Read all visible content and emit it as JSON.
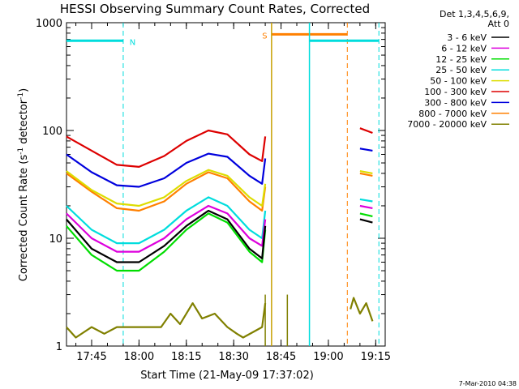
{
  "chart_data": {
    "type": "line",
    "title": "HESSI Observing Summary Count Rates, Corrected",
    "xlabel": "Start Time (21-May-09 17:37:02)",
    "ylabel": "Corrected Count Rate (s",
    "ylabel_sup1": "-1",
    "ylabel_mid": " detector",
    "ylabel_sup2": "-1",
    "ylabel_end": ")",
    "yscale": "log",
    "xlim": [
      "17:37:02",
      "19:18:00"
    ],
    "ylim": [
      1,
      1000
    ],
    "grid": false,
    "x_ticks": [
      "17:45",
      "18:00",
      "18:15",
      "18:30",
      "18:45",
      "19:00",
      "19:15"
    ],
    "y_ticks": [
      "1",
      "10",
      "100",
      "1000"
    ],
    "legend": {
      "placement": "right",
      "header": [
        "Det 1,3,4,5,6,9,",
        "Att 0"
      ],
      "entries": [
        {
          "label": "3 - 6 keV",
          "color": "#000000"
        },
        {
          "label": "6 - 12 keV",
          "color": "#dd00dd"
        },
        {
          "label": "12 - 25 keV",
          "color": "#00dd00"
        },
        {
          "label": "25 - 50 keV",
          "color": "#00dddd"
        },
        {
          "label": "50 - 100 keV",
          "color": "#dddd00"
        },
        {
          "label": "100 - 300 keV",
          "color": "#dd0000"
        },
        {
          "label": "300 - 800 keV",
          "color": "#0000dd"
        },
        {
          "label": "800 - 7000 keV",
          "color": "#ff8000"
        },
        {
          "label": "7000 - 20000 keV",
          "color": "#808000"
        }
      ]
    },
    "series": [
      {
        "color": "#dd0000",
        "segments": [
          [
            [
              "17:37",
              88
            ],
            [
              "17:45",
              65
            ],
            [
              "17:53",
              48
            ],
            [
              "18:00",
              46
            ],
            [
              "18:08",
              58
            ],
            [
              "18:15",
              80
            ],
            [
              "18:22",
              100
            ],
            [
              "18:28",
              92
            ],
            [
              "18:35",
              60
            ],
            [
              "18:39",
              52
            ],
            [
              "18:40",
              88
            ]
          ],
          [
            [
              "19:10",
              105
            ],
            [
              "19:14",
              95
            ]
          ]
        ]
      },
      {
        "color": "#0000dd",
        "segments": [
          [
            [
              "17:37",
              60
            ],
            [
              "17:45",
              41
            ],
            [
              "17:53",
              31
            ],
            [
              "18:00",
              30
            ],
            [
              "18:08",
              36
            ],
            [
              "18:15",
              50
            ],
            [
              "18:22",
              61
            ],
            [
              "18:28",
              57
            ],
            [
              "18:35",
              38
            ],
            [
              "18:39",
              32
            ],
            [
              "18:40",
              55
            ]
          ],
          [
            [
              "19:10",
              68
            ],
            [
              "19:14",
              65
            ]
          ]
        ]
      },
      {
        "color": "#ff8000",
        "segments": [
          [
            [
              "17:37",
              40
            ],
            [
              "17:45",
              27
            ],
            [
              "17:53",
              19
            ],
            [
              "18:00",
              18
            ],
            [
              "18:08",
              22
            ],
            [
              "18:15",
              32
            ],
            [
              "18:22",
              41
            ],
            [
              "18:28",
              36
            ],
            [
              "18:35",
              22
            ],
            [
              "18:39",
              18
            ],
            [
              "18:40",
              30
            ]
          ],
          [
            [
              "19:10",
              40
            ],
            [
              "19:14",
              38
            ]
          ]
        ]
      },
      {
        "color": "#dddd00",
        "segments": [
          [
            [
              "17:37",
              42
            ],
            [
              "17:45",
              28
            ],
            [
              "17:53",
              21
            ],
            [
              "18:00",
              20
            ],
            [
              "18:08",
              24
            ],
            [
              "18:15",
              34
            ],
            [
              "18:22",
              43
            ],
            [
              "18:28",
              38
            ],
            [
              "18:35",
              24
            ],
            [
              "18:39",
              20
            ],
            [
              "18:40",
              32
            ]
          ],
          [
            [
              "19:10",
              42
            ],
            [
              "19:14",
              40
            ]
          ]
        ]
      },
      {
        "color": "#00dddd",
        "segments": [
          [
            [
              "17:37",
              20
            ],
            [
              "17:45",
              12
            ],
            [
              "17:53",
              9
            ],
            [
              "18:00",
              9
            ],
            [
              "18:08",
              12
            ],
            [
              "18:15",
              18
            ],
            [
              "18:22",
              24
            ],
            [
              "18:28",
              20
            ],
            [
              "18:35",
              12
            ],
            [
              "18:39",
              10
            ],
            [
              "18:40",
              18
            ]
          ],
          [
            [
              "19:10",
              23
            ],
            [
              "19:14",
              22
            ]
          ]
        ]
      },
      {
        "color": "#dd00dd",
        "segments": [
          [
            [
              "17:37",
              17
            ],
            [
              "17:45",
              10
            ],
            [
              "17:53",
              7.5
            ],
            [
              "18:00",
              7.5
            ],
            [
              "18:08",
              10
            ],
            [
              "18:15",
              15
            ],
            [
              "18:22",
              20
            ],
            [
              "18:28",
              17
            ],
            [
              "18:35",
              10
            ],
            [
              "18:39",
              8.5
            ],
            [
              "18:40",
              15
            ]
          ],
          [
            [
              "19:10",
              20
            ],
            [
              "19:14",
              19
            ]
          ]
        ]
      },
      {
        "color": "#00dd00",
        "segments": [
          [
            [
              "17:37",
              13
            ],
            [
              "17:45",
              7
            ],
            [
              "17:53",
              5
            ],
            [
              "18:00",
              5
            ],
            [
              "18:08",
              7.5
            ],
            [
              "18:15",
              12
            ],
            [
              "18:22",
              17
            ],
            [
              "18:28",
              14
            ],
            [
              "18:35",
              7.5
            ],
            [
              "18:39",
              6
            ],
            [
              "18:40",
              12
            ]
          ],
          [
            [
              "19:10",
              17
            ],
            [
              "19:14",
              16
            ]
          ]
        ]
      },
      {
        "color": "#000000",
        "segments": [
          [
            [
              "17:37",
              15
            ],
            [
              "17:45",
              8
            ],
            [
              "17:53",
              6
            ],
            [
              "18:00",
              6
            ],
            [
              "18:08",
              8.5
            ],
            [
              "18:15",
              13
            ],
            [
              "18:22",
              18
            ],
            [
              "18:28",
              15
            ],
            [
              "18:35",
              8
            ],
            [
              "18:39",
              6.5
            ],
            [
              "18:40",
              13
            ]
          ],
          [
            [
              "19:10",
              15
            ],
            [
              "19:14",
              14
            ]
          ]
        ]
      },
      {
        "color": "#808000",
        "segments": [
          [
            [
              "17:37",
              1.5
            ],
            [
              "17:40",
              1.2
            ],
            [
              "17:45",
              1.5
            ],
            [
              "17:49",
              1.3
            ],
            [
              "17:53",
              1.5
            ],
            [
              "18:07",
              1.5
            ],
            [
              "18:10",
              2
            ],
            [
              "18:13",
              1.6
            ],
            [
              "18:17",
              2.5
            ],
            [
              "18:20",
              1.8
            ],
            [
              "18:24",
              2
            ],
            [
              "18:28",
              1.5
            ],
            [
              "18:31",
              1.3
            ],
            [
              "18:33",
              1.2
            ],
            [
              "18:39",
              1.5
            ],
            [
              "18:40",
              2.5
            ]
          ],
          [
            [
              "19:07",
              2.2
            ],
            [
              "19:08",
              2.8
            ],
            [
              "19:10",
              2.0
            ],
            [
              "19:12",
              2.5
            ],
            [
              "19:14",
              1.7
            ]
          ]
        ]
      }
    ],
    "spikes": [
      {
        "x": "18:40",
        "y1": 1,
        "y2": 3,
        "color": "#808000"
      },
      {
        "x": "18:47",
        "y1": 1,
        "y2": 3,
        "color": "#808000"
      }
    ],
    "observing_bars": [
      {
        "label": "N",
        "color": "#00dddd",
        "y": 680,
        "x1": "17:37:02",
        "x2": "17:55",
        "label_at": "17:57",
        "dash_at": "17:55"
      },
      {
        "label": "S",
        "color": "#ff8000",
        "y": 780,
        "x1": "18:42",
        "x2": "19:06",
        "label_at": "18:39",
        "dash_at": "19:06",
        "solid_at": "18:42",
        "solid_color": "#c8a000"
      },
      {
        "label": "",
        "color": "#00dddd",
        "y": 680,
        "x1": "18:54",
        "x2": "19:16",
        "label_at": "",
        "dash_at": "19:16",
        "solid_at": "18:54"
      }
    ],
    "footer_date": "7-Mar-2010 04:38"
  }
}
